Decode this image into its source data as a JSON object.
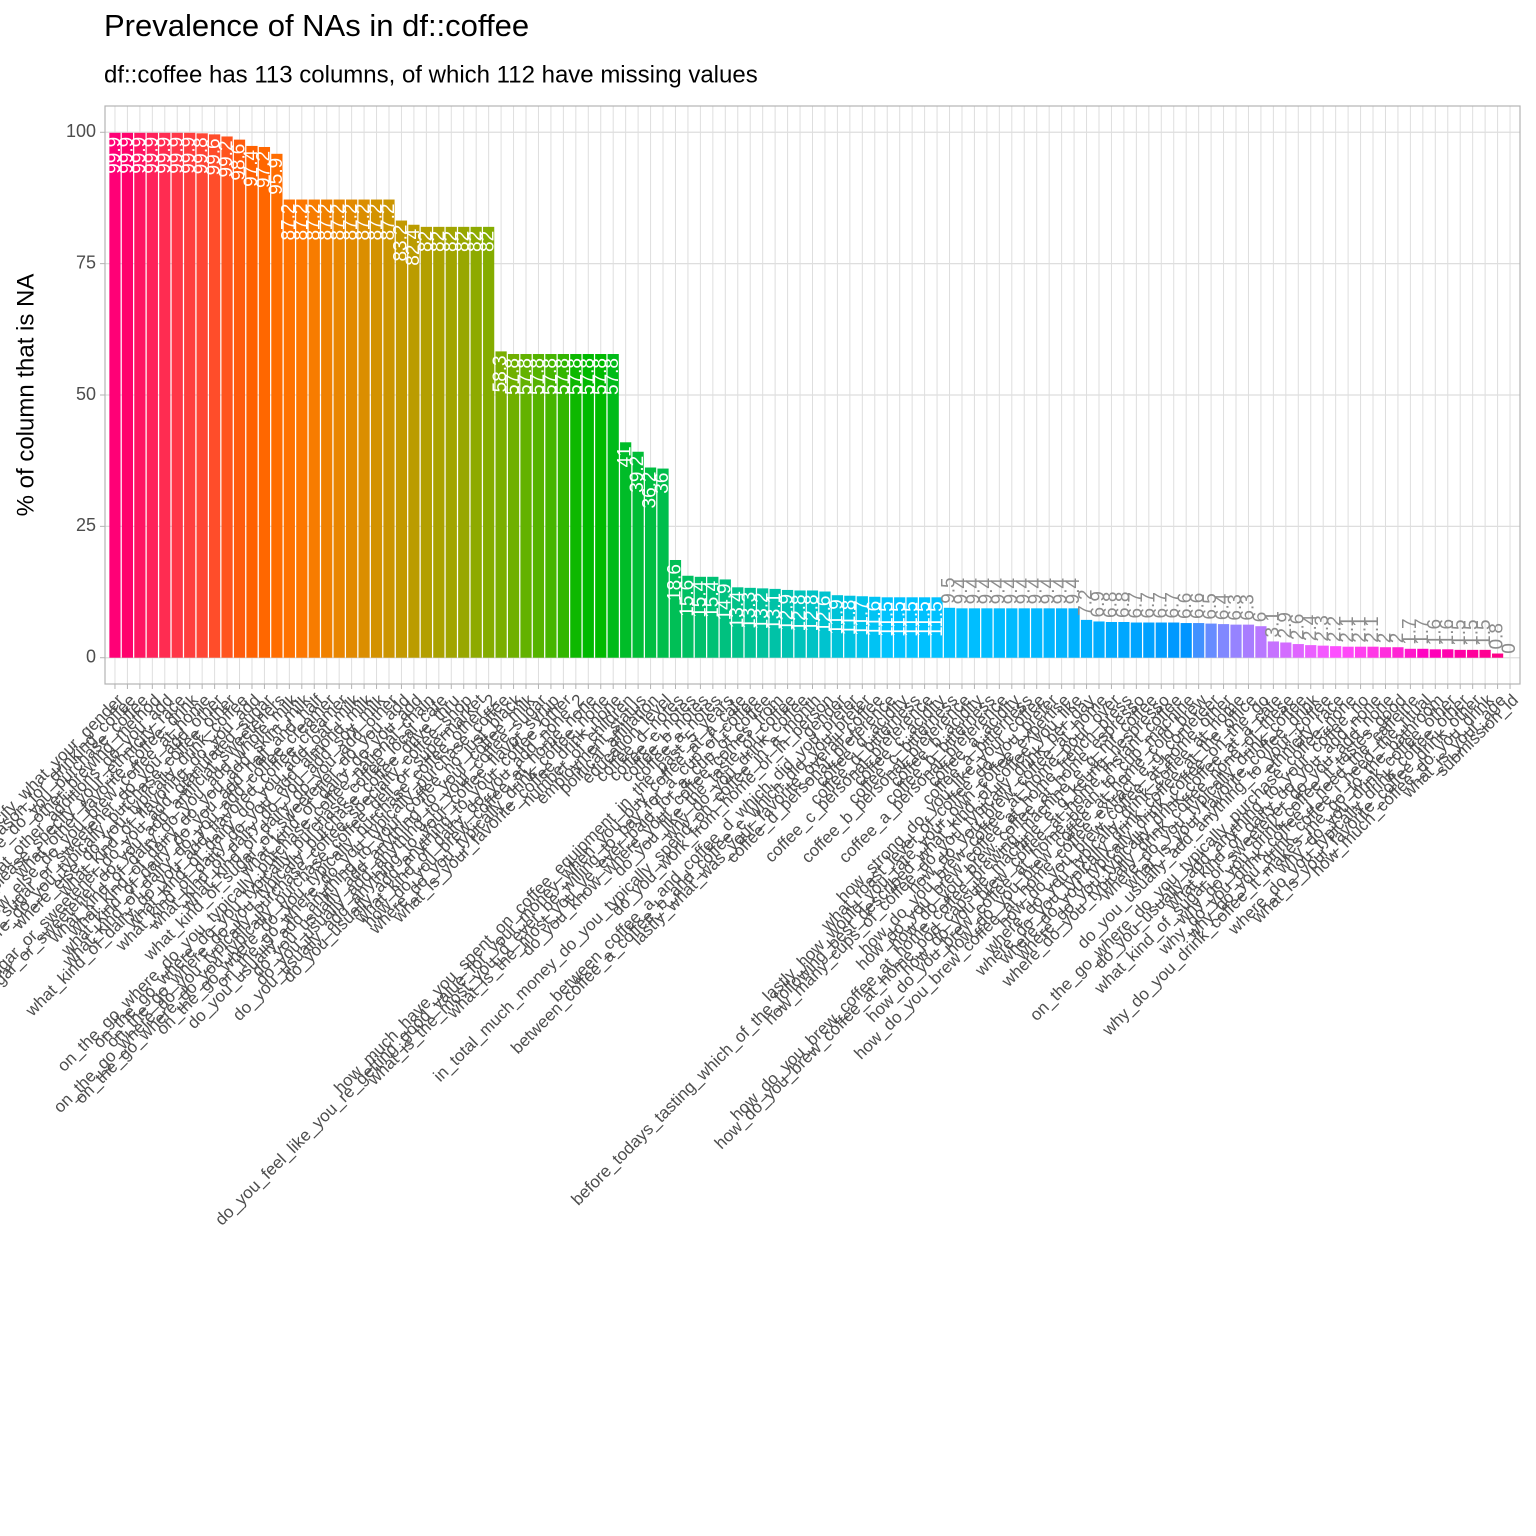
{
  "chart_data": {
    "type": "bar",
    "title": "Prevalence of NAs in df::coffee",
    "subtitle": "df::coffee has 113 columns, of which 112 have missing values",
    "y_label": "% of column that is NA",
    "categories": [
      "please_specify_what_your_gender",
      "other_reason_for_drinking_coffee",
      "where_else_do_you_purchase_coffee",
      "other_brewing_method",
      "what_other_additions_do_you_add",
      "please_specify_your_ethnicity_race",
      "what_other_favorite_coffee_drink",
      "how_else_do_you_brew_coffee_at_home",
      "what_kind_of_sugar_or_sweetener_do_you_add_other",
      "on_the_go_where_do_you_typically_purchase_coffee_other",
      "where_else_do_you_typically_drink_coffee",
      "what_kind_of_flavoring_do_you_add",
      "what_kind_of_sugar_or_sweetener_do_you_add_granulated_sugar",
      "what_kind_of_sugar_or_sweetener_do_you_add_artificial_sweeteners",
      "what_kind_of_dairy_do_you_add_whole_milk",
      "what_kind_of_dairy_do_you_add_skim_milk",
      "what_kind_of_dairy_do_you_add_half_and_half",
      "what_kind_of_dairy_do_you_add_coffee_creamer",
      "what_kind_of_dairy_do_you_add_flavored_coffee_creamer",
      "what_kind_of_dairy_do_you_add_oat_milk",
      "what_kind_of_dairy_do_you_add_almond_milk",
      "what_kind_of_dairy_do_you_add_soy_milk",
      "what_kind_of_dairy_do_you_add_other",
      "what_kind_of_sugar_or_sweetener_do_you_add",
      "what_kind_of_dairy_do_you_add",
      "on_the_go_where_do_you_typically_purchase_coffee_national_chain",
      "on_the_go_where_do_you_typically_purchase_coffee_local_cafe",
      "on_the_go_where_do_you_typically_purchase_coffee_drive_thru",
      "on_the_go_where_do_you_typically_purchase_coffee_specialty_coffee_shop",
      "on_the_go_where_do_you_typically_purchase_coffee_deli_or_supermarket",
      "on_the_go_where_do_you_typically_purchase_coffee_other_2",
      "on_the_go_where_do_you_typically_purchase_coffee",
      "do_you_usually_add_anything_to_your_coffee_no_just_black",
      "do_you_usually_add_anything_to_your_coffee_milk",
      "do_you_usually_add_anything_to_your_coffee_sugar",
      "do_you_usually_add_anything_to_your_coffee_flavor_syrup",
      "do_you_usually_add_anything_to_your_coffee_other",
      "what_kind_of_dairy_do_you_add_none_2",
      "how_do_you_brew_coffee_at_home_none",
      "where_do_you_typically_drink_coffee_none",
      "what_is_your_favorite_coffee_drink_none",
      "number_of_children",
      "employment_status",
      "political_affiliation",
      "education_level",
      "coffee_d_notes",
      "coffee_c_notes",
      "coffee_b_notes",
      "coffee_a_notes",
      "how_much_have_you_spent_on_coffee_equipment_in_the_past_5_years",
      "do_you_feel_like_you_re_getting_good_value_for_your_money_when_you_buy_coffee_at_a_cafe",
      "what_is_the_most_you_d_ever_be_willing_to_pay_for_a_cup_of_coffee",
      "what_is_the_most_you_ve_ever_paid_for_a_cup_of_coffee",
      "do_you_know_where_your_coffee_comes_from",
      "do_you_like_the_taste_of_coffee",
      "why_do_you_drink_coffee",
      "in_total_much_money_do_you_typically_spend_on_coffee_in_a_month",
      "do_you_work_from_home_or_in_person",
      "gender",
      "between_coffee_a_and_coffee_d_which_did_you_prefer",
      "between_coffee_a_coffee_b_and_coffee_c_which_did_you_prefer",
      "lastly_what_was_your_favorite_overall_coffee",
      "coffee_d_personal_preference",
      "coffee_d_acidity",
      "coffee_d_bitterness",
      "coffee_c_personal_preference",
      "coffee_c_acidity",
      "coffee_c_bitterness",
      "coffee_b_personal_preference",
      "coffee_b_acidity",
      "coffee_b_bitterness",
      "coffee_a_personal_preference",
      "coffee_a_acidity",
      "coffee_a_bitterness",
      "how_strong_do_you_like_your_coffee",
      "what_roast_level_of_coffee_do_you_prefer",
      "lastly_how_would_you_rate_your_own_coffee_expertise",
      "before_todays_tasting_which_of_the_following_best_described_what_kind_of_coffee_you_like",
      "how_many_cups_of_coffee_do_you_typically_drink_per_day",
      "how_do_you_brew_coffee_at_home",
      "how_do_you_brew_coffee_at_home_pour_over",
      "how_do_you_brew_coffee_at_home_french_press",
      "how_do_you_brew_coffee_at_home_espresso",
      "how_do_you_brew_coffee_at_home_coffee_brewing_machine_e_g_mr_coffee",
      "how_do_you_brew_coffee_at_home_pod_capsule_machine_e_g_keurig_nespresso",
      "how_do_you_brew_coffee_at_home_instant_coffee",
      "how_do_you_brew_coffee_at_home_bean_to_cup_machine",
      "how_do_you_brew_coffee_at_home_cold_brew",
      "how_do_you_brew_coffee_at_home_coffee_extract_e_g_cometeer",
      "how_do_you_brew_coffee_at_home_other",
      "where_do_you_typically_drink_coffee_at_home",
      "where_do_you_typically_drink_coffee_at_the_office",
      "where_do_you_typically_drink_coffee_on_the_go",
      "where_do_you_typically_drink_coffee_at_a_cafe",
      "where_do_you_typically_drink_coffee_none_of_these",
      "where_do_you_typically_drink_coffee",
      "what_is_your_favorite_coffee_drink",
      "do_you_usually_add_anything_to_your_coffee",
      "ethnicity_race",
      "on_the_go_where_do_you_typically_purchase_coffee_none",
      "do_you_usually_add_anything_to_your_coffee_no",
      "what_kind_of_dairy_do_you_add_none",
      "what_kind_of_sugar_or_sweetener_do_you_add_none",
      "why_do_you_drink_coffee_it_tastes_good",
      "why_do_you_drink_coffee_i_need_the_caffeine",
      "why_do_you_drink_coffee_i_need_the_ritual",
      "why_do_you_drink_coffee_it_makes_me_go_to_the_bathroom",
      "why_do_you_drink_coffee_other",
      "where_do_you_typically_drink_coffee_other",
      "what_is_your_favorite_coffee_drink_other",
      "how_much_coffee_do_you_drink",
      "what_is_your_age",
      "submission_id"
    ],
    "values": [
      99.9,
      99.9,
      99.9,
      99.9,
      99.9,
      99.9,
      99.9,
      99.8,
      99.6,
      99.2,
      98.6,
      97.4,
      97.2,
      95.9,
      87.2,
      87.2,
      87.2,
      87.2,
      87.2,
      87.2,
      87.2,
      87.2,
      87.2,
      83.2,
      82.4,
      82.0,
      82.0,
      82.0,
      82.0,
      82.0,
      82.0,
      58.3,
      57.8,
      57.8,
      57.8,
      57.8,
      57.8,
      57.8,
      57.8,
      57.8,
      57.8,
      41,
      39.2,
      36.2,
      36,
      18.6,
      15.6,
      15.4,
      15.4,
      14.9,
      13.4,
      13.3,
      13.2,
      13.1,
      12.9,
      12.8,
      12.8,
      12.6,
      11.9,
      11.8,
      11.7,
      11.6,
      11.5,
      11.5,
      11.5,
      11.5,
      11.5,
      9.5,
      9.4,
      9.4,
      9.4,
      9.4,
      9.4,
      9.4,
      9.4,
      9.4,
      9.4,
      9.4,
      7.2,
      6.9,
      6.8,
      6.8,
      6.7,
      6.7,
      6.7,
      6.7,
      6.6,
      6.6,
      6.5,
      6.4,
      6.3,
      6.3,
      6.0,
      3.1,
      2.9,
      2.6,
      2.4,
      2.3,
      2.2,
      2.1,
      2.1,
      2.1,
      2.0,
      2.0,
      1.7,
      1.7,
      1.6,
      1.6,
      1.5,
      1.5,
      1.5,
      0.8,
      0
    ],
    "palette": {
      "kind": "hue",
      "h": [
        15,
        375
      ],
      "c": 100,
      "l": 65
    },
    "ylim": [
      -5,
      105
    ],
    "yticks": [
      0,
      25,
      50,
      75,
      100
    ],
    "grid": true
  }
}
